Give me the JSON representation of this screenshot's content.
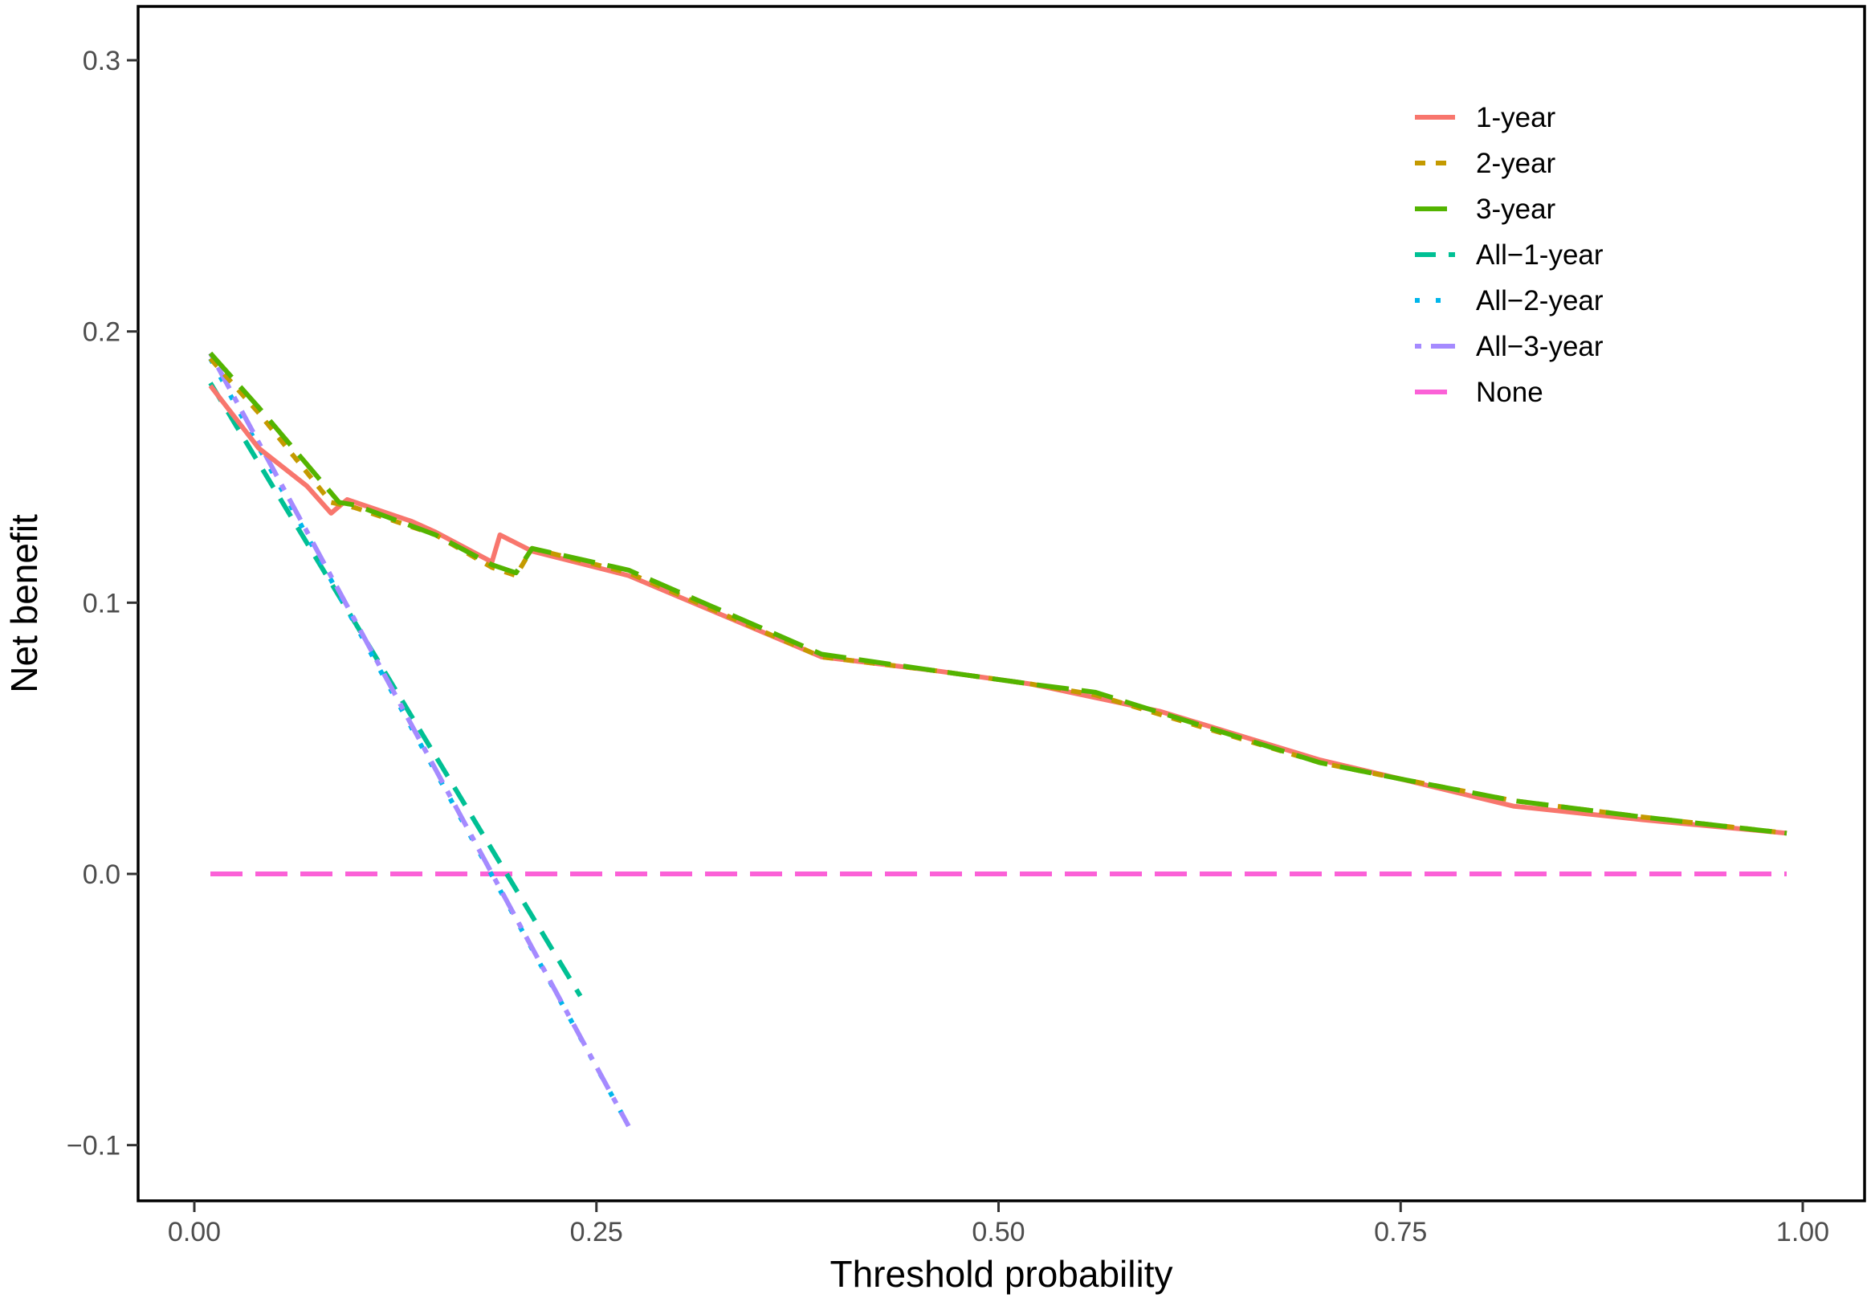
{
  "chart_data": {
    "type": "line",
    "title": "",
    "xlabel": "Threshold probability",
    "ylabel": "Net benefit",
    "xlim": [
      -0.035,
      1.035
    ],
    "ylim": [
      -0.12,
      0.32
    ],
    "x_ticks": [
      0.0,
      0.25,
      0.5,
      0.75,
      1.0
    ],
    "x_tick_labels": [
      "0.00",
      "0.25",
      "0.50",
      "0.75",
      "1.00"
    ],
    "y_ticks": [
      -0.1,
      0.0,
      0.1,
      0.2,
      0.3
    ],
    "y_tick_labels": [
      "−0.1",
      "0.0",
      "0.1",
      "0.2",
      "0.3"
    ],
    "grid": false,
    "legend_position": "top-right",
    "series": [
      {
        "name": "1-year",
        "color": "#F8766D",
        "dash": "solid",
        "points": [
          [
            0.01,
            0.18
          ],
          [
            0.04,
            0.157
          ],
          [
            0.07,
            0.143
          ],
          [
            0.085,
            0.133
          ],
          [
            0.095,
            0.138
          ],
          [
            0.135,
            0.13
          ],
          [
            0.15,
            0.126
          ],
          [
            0.185,
            0.115
          ],
          [
            0.19,
            0.125
          ],
          [
            0.21,
            0.119
          ],
          [
            0.27,
            0.11
          ],
          [
            0.39,
            0.08
          ],
          [
            0.46,
            0.075
          ],
          [
            0.52,
            0.07
          ],
          [
            0.6,
            0.06
          ],
          [
            0.7,
            0.042
          ],
          [
            0.75,
            0.035
          ],
          [
            0.82,
            0.025
          ],
          [
            0.9,
            0.02
          ],
          [
            0.99,
            0.015
          ]
        ]
      },
      {
        "name": "2-year",
        "color": "#C49A00",
        "dash": "short-dash",
        "points": [
          [
            0.01,
            0.19
          ],
          [
            0.04,
            0.17
          ],
          [
            0.085,
            0.137
          ],
          [
            0.1,
            0.135
          ],
          [
            0.135,
            0.128
          ],
          [
            0.15,
            0.125
          ],
          [
            0.185,
            0.113
          ],
          [
            0.2,
            0.11
          ],
          [
            0.21,
            0.12
          ],
          [
            0.27,
            0.111
          ],
          [
            0.39,
            0.08
          ],
          [
            0.46,
            0.075
          ],
          [
            0.52,
            0.07
          ],
          [
            0.56,
            0.066
          ],
          [
            0.7,
            0.041
          ],
          [
            0.75,
            0.035
          ],
          [
            0.82,
            0.027
          ],
          [
            0.9,
            0.021
          ],
          [
            0.99,
            0.015
          ]
        ]
      },
      {
        "name": "3-year",
        "color": "#53B400",
        "dash": "long-dash",
        "points": [
          [
            0.01,
            0.192
          ],
          [
            0.04,
            0.172
          ],
          [
            0.09,
            0.137
          ],
          [
            0.1,
            0.136
          ],
          [
            0.15,
            0.125
          ],
          [
            0.185,
            0.114
          ],
          [
            0.2,
            0.111
          ],
          [
            0.21,
            0.12
          ],
          [
            0.27,
            0.112
          ],
          [
            0.39,
            0.081
          ],
          [
            0.46,
            0.075
          ],
          [
            0.52,
            0.07
          ],
          [
            0.56,
            0.067
          ],
          [
            0.7,
            0.041
          ],
          [
            0.75,
            0.035
          ],
          [
            0.82,
            0.027
          ],
          [
            0.9,
            0.021
          ],
          [
            0.99,
            0.015
          ]
        ]
      },
      {
        "name": "All−1-year",
        "color": "#00C094",
        "dash": "dashed",
        "points": [
          [
            0.01,
            0.181
          ],
          [
            0.24,
            -0.045
          ]
        ]
      },
      {
        "name": "All−2-year",
        "color": "#00B6EB",
        "dash": "dotted",
        "points": [
          [
            0.01,
            0.19
          ],
          [
            0.27,
            -0.093
          ]
        ]
      },
      {
        "name": "All−3-year",
        "color": "#A58AFF",
        "dash": "dot-dash",
        "points": [
          [
            0.01,
            0.192
          ],
          [
            0.27,
            -0.093
          ]
        ]
      },
      {
        "name": "None",
        "color": "#FB61D7",
        "dash": "long-dash",
        "points": [
          [
            0.01,
            0.0
          ],
          [
            0.99,
            0.0
          ]
        ]
      }
    ]
  }
}
